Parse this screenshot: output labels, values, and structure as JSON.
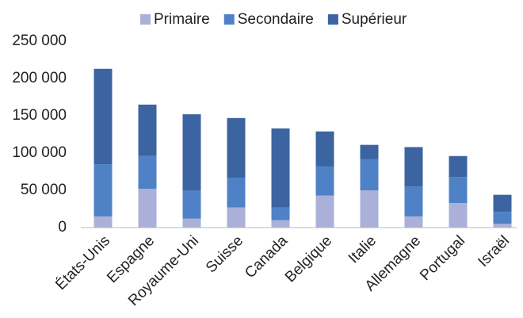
{
  "chart_data": {
    "type": "stacked_bar",
    "categories": [
      "États-Unis",
      "Espagne",
      "Royaume-Uni",
      "Suisse",
      "Canada",
      "Belgique",
      "Italie",
      "Allemagne",
      "Portugal",
      "Israël"
    ],
    "series": [
      {
        "name": "Primaire",
        "color": "#aab0d8",
        "values": [
          15000,
          52000,
          12000,
          27000,
          10000,
          43000,
          50000,
          15000,
          33000,
          5000
        ]
      },
      {
        "name": "Secondaire",
        "color": "#4f81c7",
        "values": [
          70000,
          44000,
          38000,
          40000,
          17000,
          39000,
          42000,
          40000,
          35000,
          16000
        ]
      },
      {
        "name": "Supérieur",
        "color": "#3b64a0",
        "values": [
          128000,
          69000,
          102000,
          80000,
          106000,
          47000,
          19000,
          53000,
          28000,
          23000
        ]
      }
    ],
    "ylim": [
      0,
      250000
    ],
    "yticks": [
      {
        "value": 0,
        "label": "0"
      },
      {
        "value": 50000,
        "label": "50 000"
      },
      {
        "value": 100000,
        "label": "100 000"
      },
      {
        "value": 150000,
        "label": "150 000"
      },
      {
        "value": 200000,
        "label": "200 000"
      },
      {
        "value": 250000,
        "label": "250 000"
      }
    ],
    "legend": "top"
  }
}
